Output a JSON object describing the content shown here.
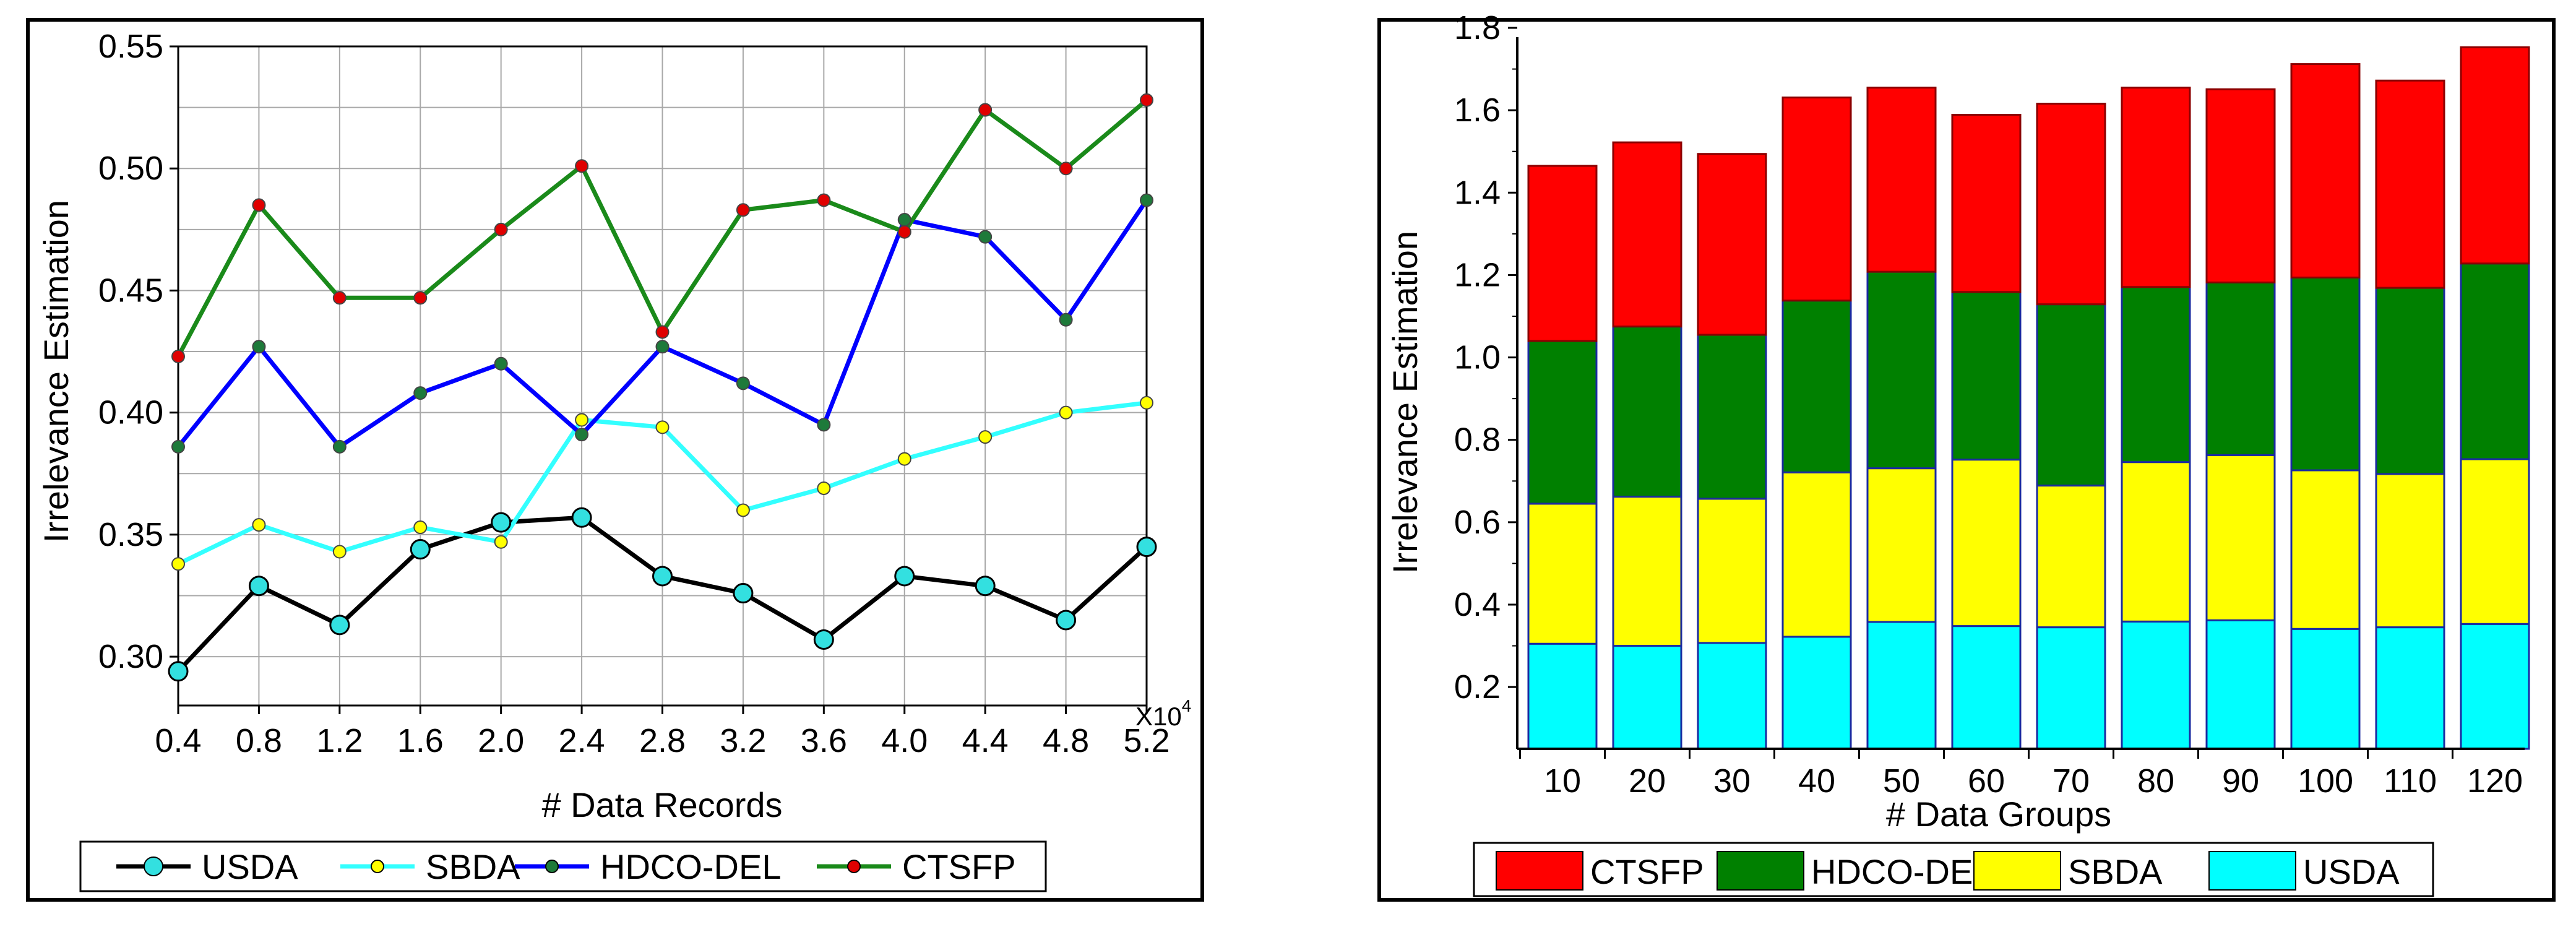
{
  "chart_data": [
    {
      "type": "line",
      "xlabel": "# Data Records",
      "ylabel": "Irrelevance Estimation",
      "x_multiplier_label": "X10",
      "x_multiplier_exponent": "4",
      "categories": [
        "0.4",
        "0.8",
        "1.2",
        "1.6",
        "2.0",
        "2.4",
        "2.8",
        "3.2",
        "3.6",
        "4.0",
        "4.4",
        "4.8",
        "5.2"
      ],
      "x": [
        0.4,
        0.8,
        1.2,
        1.6,
        2.0,
        2.4,
        2.8,
        3.2,
        3.6,
        4.0,
        4.4,
        4.8,
        5.2
      ],
      "xlim": [
        0.4,
        5.2
      ],
      "ylim": [
        0.28,
        0.55
      ],
      "yticks": [
        0.3,
        0.35,
        0.4,
        0.45,
        0.5,
        0.55
      ],
      "ytick_labels": [
        "0.30",
        "0.35",
        "0.40",
        "0.45",
        "0.50",
        "0.55"
      ],
      "grid": true,
      "legend_position": "bottom",
      "series": [
        {
          "name": "USDA",
          "line_color": "#000000",
          "marker_color": "#33e0e0",
          "marker": "large-circle",
          "values": [
            0.294,
            0.329,
            0.313,
            0.344,
            0.355,
            0.357,
            0.333,
            0.326,
            0.307,
            0.333,
            0.329,
            0.315,
            0.345
          ]
        },
        {
          "name": "SBDA",
          "line_color": "#33ffff",
          "marker_color": "#ffff00",
          "marker": "small-circle",
          "values": [
            0.338,
            0.354,
            0.343,
            0.353,
            0.347,
            0.397,
            0.394,
            0.36,
            0.369,
            0.381,
            0.39,
            0.4,
            0.404
          ]
        },
        {
          "name": "HDCO-DEL",
          "line_color": "#0000ff",
          "marker_color": "#1e7a3a",
          "marker": "small-circle",
          "values": [
            0.386,
            0.427,
            0.386,
            0.408,
            0.42,
            0.391,
            0.427,
            0.412,
            0.395,
            0.479,
            0.472,
            0.438,
            0.487
          ]
        },
        {
          "name": "CTSFP",
          "line_color": "#1a8a1a",
          "marker_color": "#e00000",
          "marker": "small-circle",
          "values": [
            0.423,
            0.485,
            0.447,
            0.447,
            0.475,
            0.501,
            0.433,
            0.483,
            0.487,
            0.474,
            0.524,
            0.5,
            0.528
          ]
        }
      ]
    },
    {
      "type": "bar",
      "stacked": true,
      "xlabel": "# Data Groups",
      "ylabel": "Irrelevance Estimation",
      "categories": [
        "10",
        "20",
        "30",
        "40",
        "50",
        "60",
        "70",
        "80",
        "90",
        "100",
        "110",
        "120"
      ],
      "ylim": [
        0.05,
        1.8
      ],
      "yticks": [
        0.2,
        0.4,
        0.6,
        0.8,
        1.0,
        1.2,
        1.4,
        1.6,
        1.8
      ],
      "ytick_labels": [
        "0.2",
        "0.4",
        "0.6",
        "0.8",
        "1.0",
        "1.2",
        "1.4",
        "1.6",
        "1.8"
      ],
      "grid": false,
      "legend_position": "bottom",
      "series": [
        {
          "name": "USDA",
          "color": "#00ffff",
          "values": [
            0.305,
            0.3,
            0.307,
            0.322,
            0.358,
            0.348,
            0.345,
            0.359,
            0.362,
            0.341,
            0.345,
            0.353
          ]
        },
        {
          "name": "SBDA",
          "color": "#ffff00",
          "values": [
            0.34,
            0.362,
            0.35,
            0.399,
            0.373,
            0.404,
            0.344,
            0.387,
            0.401,
            0.385,
            0.372,
            0.4
          ]
        },
        {
          "name": "HDCO-DEL",
          "color": "#008000",
          "values": [
            0.395,
            0.413,
            0.398,
            0.417,
            0.477,
            0.407,
            0.44,
            0.425,
            0.419,
            0.468,
            0.452,
            0.475
          ]
        },
        {
          "name": "CTSFP",
          "color": "#ff0000",
          "values": [
            0.425,
            0.447,
            0.439,
            0.493,
            0.447,
            0.43,
            0.487,
            0.484,
            0.469,
            0.518,
            0.503,
            0.525
          ]
        }
      ],
      "legend_order": [
        "CTSFP",
        "HDCO-DEL",
        "SBDA",
        "USDA"
      ]
    }
  ]
}
